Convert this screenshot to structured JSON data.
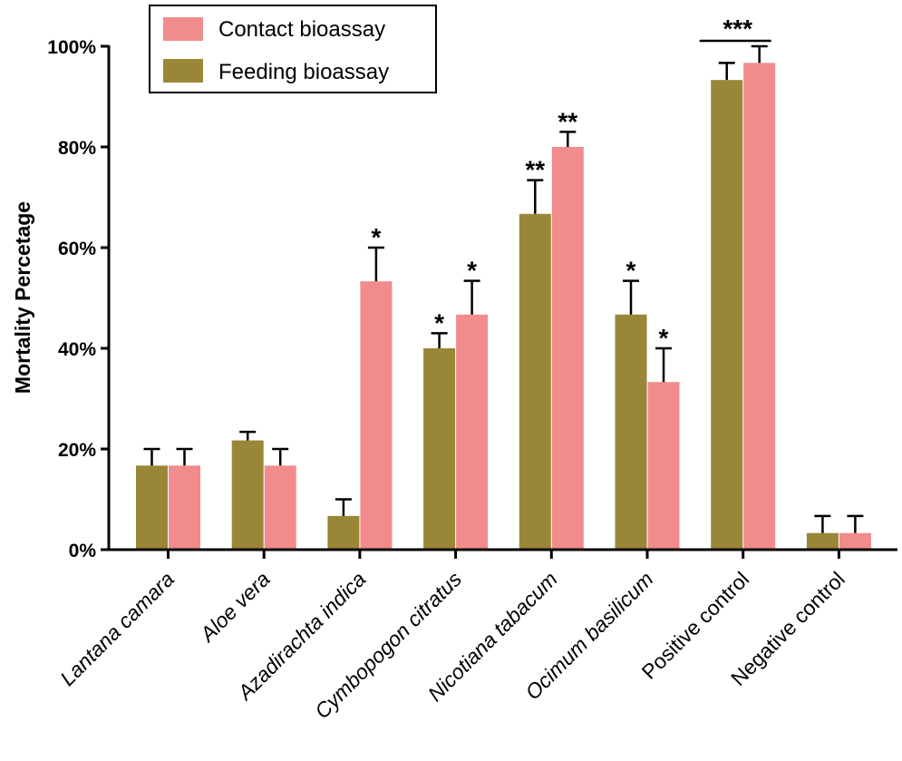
{
  "chart_data": {
    "type": "bar",
    "title": "",
    "xlabel": "",
    "ylabel": "Mortality Percetage",
    "ylim": [
      0,
      100
    ],
    "yticks": [
      "0%",
      "20%",
      "40%",
      "60%",
      "80%",
      "100%"
    ],
    "categories": [
      {
        "name": "Lantana camara",
        "italic": true
      },
      {
        "name": "Aloe vera",
        "italic": true
      },
      {
        "name": "Azadirachta indica",
        "italic": true
      },
      {
        "name": "Cymbopogon citratus",
        "italic": true
      },
      {
        "name": "Nicotiana tabacum",
        "italic": true
      },
      {
        "name": "Ocimum basilicum",
        "italic": true
      },
      {
        "name": "Positive control",
        "italic": false
      },
      {
        "name": "Negative control",
        "italic": false
      }
    ],
    "series": [
      {
        "name": "Feeding bioassay",
        "color": "#9a8637",
        "values": [
          16.7,
          21.7,
          6.7,
          40.0,
          66.7,
          46.7,
          93.3,
          3.3
        ],
        "errors": [
          3.3,
          1.7,
          3.3,
          3.0,
          6.7,
          6.7,
          3.4,
          3.4
        ],
        "significance": [
          "",
          "",
          "",
          "*",
          "**",
          "*",
          "",
          ""
        ]
      },
      {
        "name": "Contact bioassay",
        "color": "#f28b8b",
        "values": [
          16.7,
          16.7,
          53.3,
          46.7,
          80.0,
          33.3,
          96.7,
          3.3
        ],
        "errors": [
          3.3,
          3.3,
          6.7,
          6.7,
          3.0,
          6.7,
          3.3,
          3.4
        ],
        "significance": [
          "",
          "",
          "*",
          "*",
          "**",
          "*",
          "",
          ""
        ]
      }
    ],
    "group_significance": [
      {
        "category_index": 6,
        "label": "***"
      }
    ],
    "legend": {
      "position": "top-left",
      "entries": [
        "Contact bioassay",
        "Feeding bioassay"
      ]
    }
  }
}
